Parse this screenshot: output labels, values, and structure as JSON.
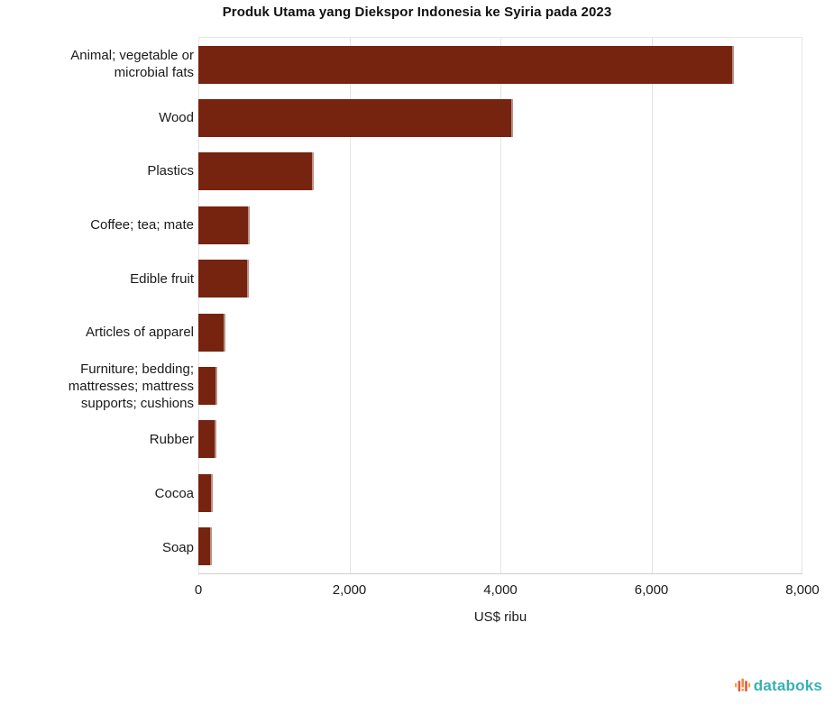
{
  "chart_data": {
    "type": "bar",
    "orientation": "horizontal",
    "title": "Produk Utama yang Diekspor Indonesia ke Syiria pada 2023",
    "xlabel": "US$ ribu",
    "xlim": [
      0,
      8000
    ],
    "xticks": [
      {
        "label": "0",
        "value": 0
      },
      {
        "label": "2,000",
        "value": 2000
      },
      {
        "label": "4,000",
        "value": 4000
      },
      {
        "label": "6,000",
        "value": 6000
      },
      {
        "label": "8,000",
        "value": 8000
      }
    ],
    "grid": true,
    "gridline_color": "#e4e4e4",
    "bar_color": "#76230F",
    "categories": [
      "Animal; vegetable or microbial fats",
      "Wood",
      "Plastics",
      "Coffee; tea; mate",
      "Edible fruit",
      "Articles of apparel",
      "Furniture; bedding; mattresses; mattress supports; cushions",
      "Rubber",
      "Cocoa",
      "Soap"
    ],
    "values": [
      7090,
      4170,
      1530,
      685,
      665,
      360,
      245,
      240,
      190,
      185
    ]
  },
  "footer": {
    "brand": "databoks",
    "brand_color": "#38b0b4",
    "icon": "databoks-pulse-bars-icon",
    "icon_colors": [
      "#f2a13e",
      "#e8563d",
      "#ef8d3e"
    ]
  }
}
